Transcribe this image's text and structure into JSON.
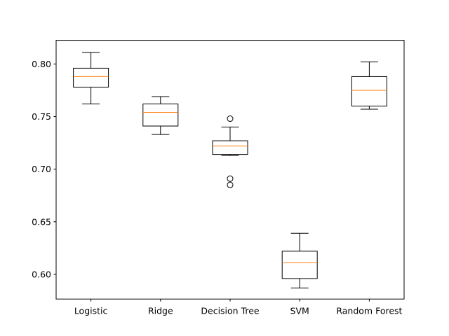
{
  "chart_data": {
    "type": "boxplot",
    "title": "",
    "xlabel": "",
    "ylabel": "",
    "categories": [
      "Logistic",
      "Ridge",
      "Decision Tree",
      "SVM",
      "Random Forest"
    ],
    "ylim": [
      0.5765,
      0.8225
    ],
    "yticks": [
      0.6,
      0.65,
      0.7,
      0.75,
      0.8
    ],
    "ytick_labels": [
      "0.60",
      "0.65",
      "0.70",
      "0.75",
      "0.80"
    ],
    "grid": false,
    "boxes": [
      {
        "label": "Logistic",
        "whisker_low": 0.762,
        "q1": 0.778,
        "median": 0.788,
        "q3": 0.796,
        "whisker_high": 0.811,
        "outliers": []
      },
      {
        "label": "Ridge",
        "whisker_low": 0.733,
        "q1": 0.741,
        "median": 0.754,
        "q3": 0.762,
        "whisker_high": 0.769,
        "outliers": []
      },
      {
        "label": "Decision Tree",
        "whisker_low": 0.713,
        "q1": 0.714,
        "median": 0.722,
        "q3": 0.727,
        "whisker_high": 0.74,
        "outliers": [
          0.748,
          0.691,
          0.685
        ]
      },
      {
        "label": "SVM",
        "whisker_low": 0.587,
        "q1": 0.596,
        "median": 0.611,
        "q3": 0.622,
        "whisker_high": 0.639,
        "outliers": []
      },
      {
        "label": "Random Forest",
        "whisker_low": 0.757,
        "q1": 0.76,
        "median": 0.775,
        "q3": 0.788,
        "whisker_high": 0.802,
        "outliers": []
      }
    ],
    "colors": {
      "box": "#000000",
      "median": "#ff7f0e",
      "outlier": "#000000",
      "background": "#ffffff"
    }
  }
}
